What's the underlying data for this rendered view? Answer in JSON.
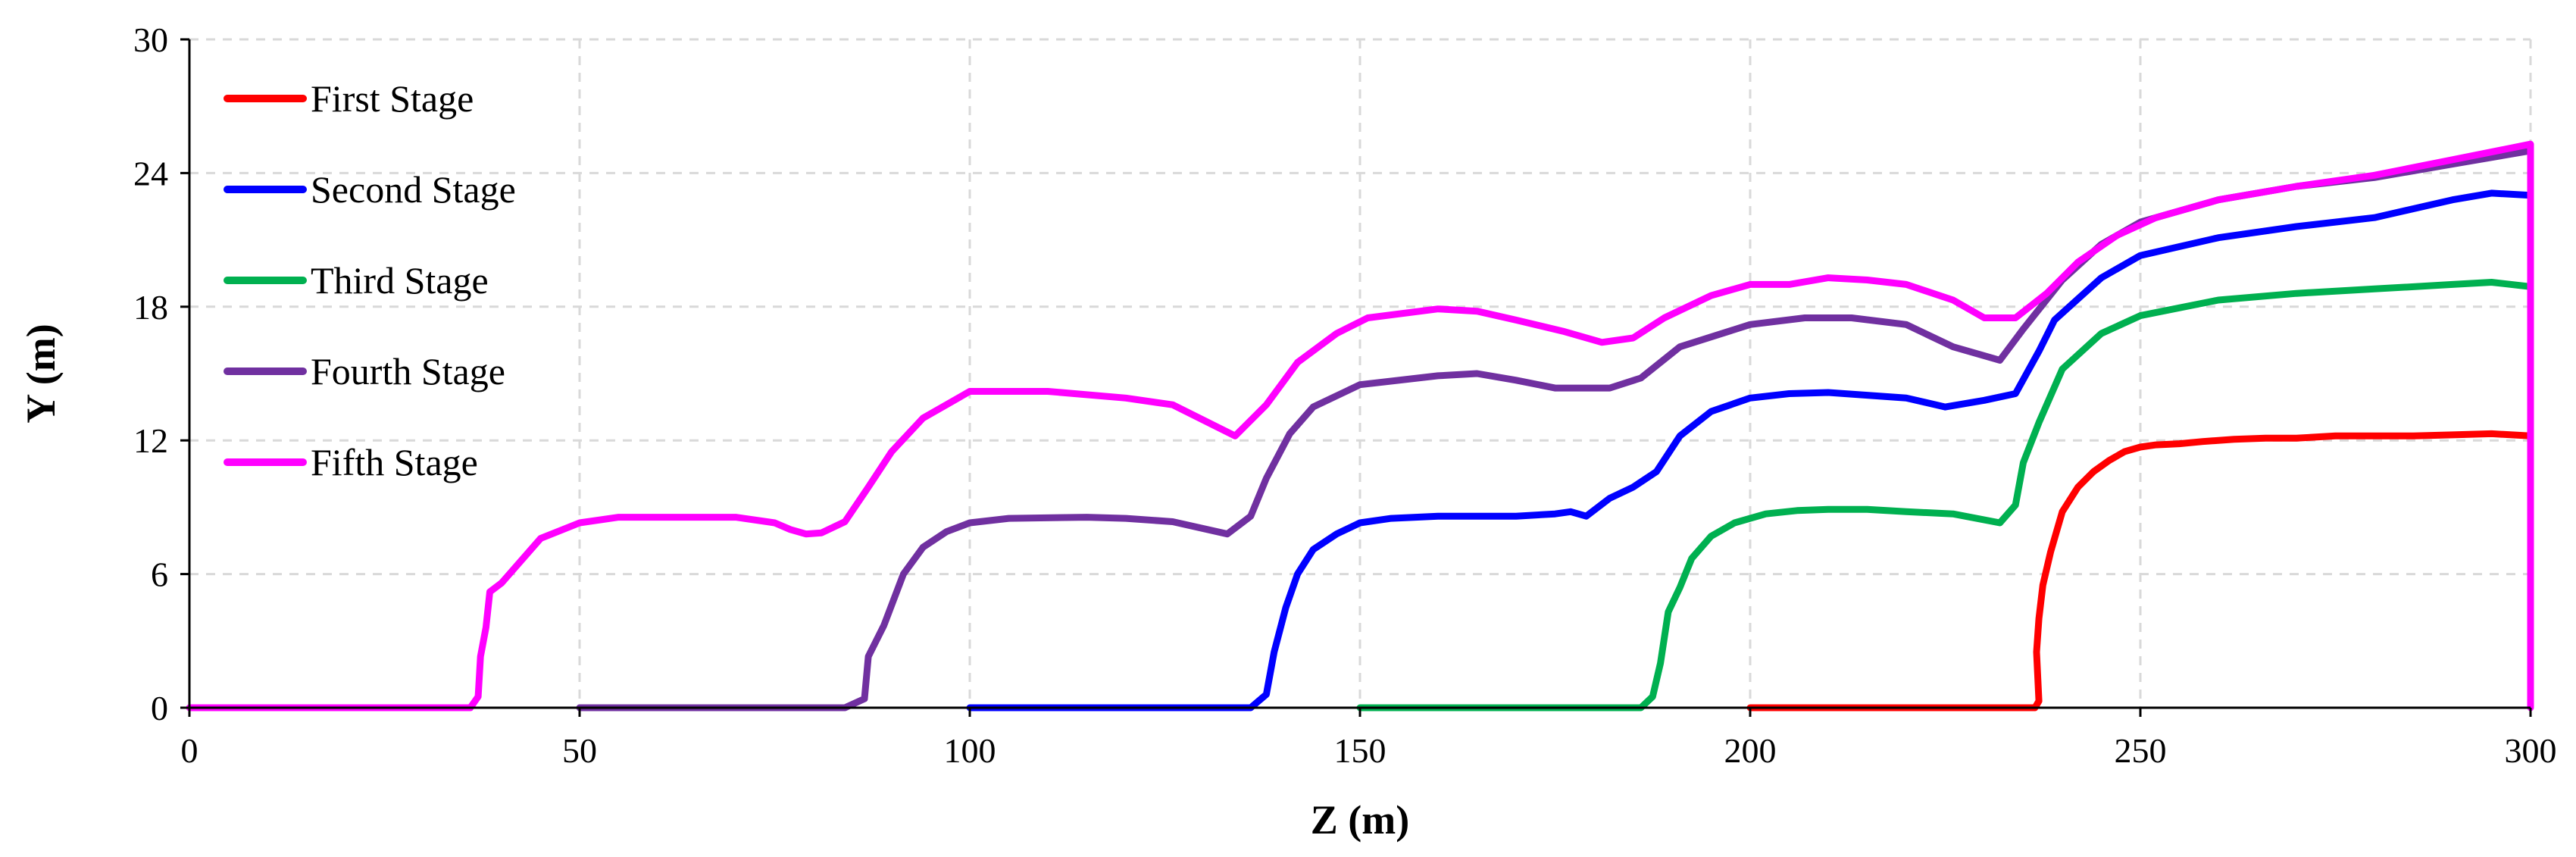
{
  "chart_data": {
    "type": "line",
    "title": "",
    "xlabel": "Z (m)",
    "ylabel": "Y (m)",
    "xlim": [
      0,
      300
    ],
    "ylim": [
      0,
      30
    ],
    "xticks": [
      0,
      50,
      100,
      150,
      200,
      250,
      300
    ],
    "yticks": [
      0,
      6,
      12,
      18,
      24,
      30
    ],
    "grid": true,
    "legend_position": "top-left",
    "series": [
      {
        "name": "First Stage",
        "color": "#ff0000",
        "points": [
          [
            200,
            0
          ],
          [
            236.5,
            0
          ],
          [
            237,
            0.3
          ],
          [
            236.7,
            2.5
          ],
          [
            237,
            4
          ],
          [
            237.5,
            5.5
          ],
          [
            238.5,
            7
          ],
          [
            240,
            8.8
          ],
          [
            242,
            9.9
          ],
          [
            244,
            10.6
          ],
          [
            246,
            11.1
          ],
          [
            248,
            11.5
          ],
          [
            250,
            11.7
          ],
          [
            252,
            11.8
          ],
          [
            255,
            11.85
          ],
          [
            258,
            11.95
          ],
          [
            262,
            12.05
          ],
          [
            266,
            12.1
          ],
          [
            270,
            12.1
          ],
          [
            275,
            12.2
          ],
          [
            280,
            12.2
          ],
          [
            285,
            12.2
          ],
          [
            290,
            12.25
          ],
          [
            295,
            12.3
          ],
          [
            300,
            12.2
          ]
        ]
      },
      {
        "name": "Second Stage",
        "color": "#0000ff",
        "points": [
          [
            100,
            0
          ],
          [
            136,
            0
          ],
          [
            138,
            0.6
          ],
          [
            139,
            2.5
          ],
          [
            140.5,
            4.5
          ],
          [
            142,
            6
          ],
          [
            144,
            7.1
          ],
          [
            147,
            7.8
          ],
          [
            150,
            8.3
          ],
          [
            154,
            8.5
          ],
          [
            160,
            8.6
          ],
          [
            170,
            8.6
          ],
          [
            175,
            8.7
          ],
          [
            177,
            8.8
          ],
          [
            179,
            8.6
          ],
          [
            182,
            9.4
          ],
          [
            185,
            9.9
          ],
          [
            188,
            10.6
          ],
          [
            191,
            12.2
          ],
          [
            195,
            13.3
          ],
          [
            200,
            13.9
          ],
          [
            205,
            14.1
          ],
          [
            210,
            14.15
          ],
          [
            220,
            13.9
          ],
          [
            225,
            13.5
          ],
          [
            230,
            13.8
          ],
          [
            234,
            14.1
          ],
          [
            237,
            16
          ],
          [
            239,
            17.4
          ],
          [
            245,
            19.3
          ],
          [
            250,
            20.3
          ],
          [
            260,
            21.1
          ],
          [
            270,
            21.6
          ],
          [
            280,
            22
          ],
          [
            290,
            22.8
          ],
          [
            295,
            23.1
          ],
          [
            300,
            23
          ]
        ]
      },
      {
        "name": "Third Stage",
        "color": "#00b050",
        "points": [
          [
            150,
            0
          ],
          [
            186,
            0
          ],
          [
            187.5,
            0.5
          ],
          [
            188.5,
            2
          ],
          [
            189.5,
            4.3
          ],
          [
            191,
            5.4
          ],
          [
            192.5,
            6.7
          ],
          [
            195,
            7.7
          ],
          [
            198,
            8.3
          ],
          [
            202,
            8.7
          ],
          [
            206,
            8.85
          ],
          [
            210,
            8.9
          ],
          [
            215,
            8.9
          ],
          [
            220,
            8.8
          ],
          [
            226,
            8.7
          ],
          [
            232,
            8.3
          ],
          [
            234,
            9.1
          ],
          [
            235,
            11
          ],
          [
            237,
            12.8
          ],
          [
            240,
            15.2
          ],
          [
            245,
            16.8
          ],
          [
            250,
            17.6
          ],
          [
            260,
            18.3
          ],
          [
            270,
            18.6
          ],
          [
            280,
            18.8
          ],
          [
            290,
            19
          ],
          [
            295,
            19.1
          ],
          [
            300,
            18.9
          ]
        ]
      },
      {
        "name": "Fourth Stage",
        "color": "#7030a0",
        "points": [
          [
            50,
            0
          ],
          [
            84,
            0
          ],
          [
            86.5,
            0.4
          ],
          [
            87,
            2.3
          ],
          [
            89,
            3.7
          ],
          [
            91.5,
            6
          ],
          [
            94,
            7.2
          ],
          [
            97,
            7.9
          ],
          [
            100,
            8.3
          ],
          [
            105,
            8.5
          ],
          [
            115,
            8.55
          ],
          [
            120,
            8.5
          ],
          [
            126,
            8.35
          ],
          [
            133,
            7.8
          ],
          [
            136,
            8.6
          ],
          [
            138,
            10.3
          ],
          [
            141,
            12.3
          ],
          [
            144,
            13.5
          ],
          [
            150,
            14.5
          ],
          [
            160,
            14.9
          ],
          [
            165,
            15
          ],
          [
            170,
            14.7
          ],
          [
            175,
            14.35
          ],
          [
            182,
            14.35
          ],
          [
            186,
            14.8
          ],
          [
            191,
            16.2
          ],
          [
            200,
            17.2
          ],
          [
            207,
            17.5
          ],
          [
            213,
            17.5
          ],
          [
            220,
            17.2
          ],
          [
            226,
            16.2
          ],
          [
            232,
            15.6
          ],
          [
            235,
            17
          ],
          [
            240,
            19.2
          ],
          [
            245,
            20.8
          ],
          [
            250,
            21.8
          ],
          [
            260,
            22.8
          ],
          [
            270,
            23.4
          ],
          [
            280,
            23.8
          ],
          [
            290,
            24.4
          ],
          [
            300,
            25
          ]
        ]
      },
      {
        "name": "Fifth Stage",
        "color": "#ff00ff",
        "points": [
          [
            0,
            0
          ],
          [
            36,
            0
          ],
          [
            37,
            0.5
          ],
          [
            37.3,
            2.3
          ],
          [
            38,
            3.6
          ],
          [
            38.5,
            5.2
          ],
          [
            40,
            5.6
          ],
          [
            45,
            7.6
          ],
          [
            50,
            8.3
          ],
          [
            55,
            8.55
          ],
          [
            60,
            8.55
          ],
          [
            65,
            8.55
          ],
          [
            70,
            8.55
          ],
          [
            75,
            8.3
          ],
          [
            77,
            8
          ],
          [
            79,
            7.8
          ],
          [
            81,
            7.85
          ],
          [
            84,
            8.35
          ],
          [
            87,
            9.9
          ],
          [
            90,
            11.5
          ],
          [
            94,
            13
          ],
          [
            100,
            14.2
          ],
          [
            110,
            14.2
          ],
          [
            120,
            13.9
          ],
          [
            126,
            13.6
          ],
          [
            134,
            12.2
          ],
          [
            138,
            13.6
          ],
          [
            142,
            15.5
          ],
          [
            147,
            16.8
          ],
          [
            151,
            17.5
          ],
          [
            160,
            17.9
          ],
          [
            165,
            17.8
          ],
          [
            170,
            17.4
          ],
          [
            176,
            16.9
          ],
          [
            181,
            16.4
          ],
          [
            185,
            16.6
          ],
          [
            189,
            17.5
          ],
          [
            195,
            18.5
          ],
          [
            200,
            19
          ],
          [
            205,
            19
          ],
          [
            210,
            19.3
          ],
          [
            215,
            19.2
          ],
          [
            220,
            19
          ],
          [
            226,
            18.3
          ],
          [
            230,
            17.5
          ],
          [
            234,
            17.5
          ],
          [
            238,
            18.6
          ],
          [
            242,
            20
          ],
          [
            247,
            21.2
          ],
          [
            252,
            22
          ],
          [
            260,
            22.8
          ],
          [
            270,
            23.4
          ],
          [
            280,
            23.9
          ],
          [
            290,
            24.6
          ],
          [
            300,
            25.3
          ],
          [
            300,
            0
          ]
        ]
      }
    ]
  }
}
